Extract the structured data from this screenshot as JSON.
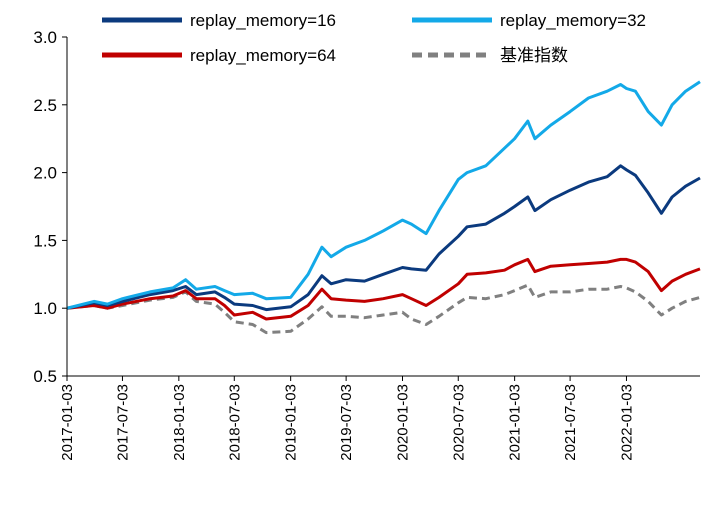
{
  "chart_data": {
    "type": "line",
    "title": "",
    "xlabel": "",
    "ylabel": "",
    "ylim": [
      0.5,
      3.0
    ],
    "yticks": [
      "0.5",
      "1.0",
      "1.5",
      "2.0",
      "2.5",
      "3.0"
    ],
    "x_ticks": [
      "2017-01-03",
      "2017-07-03",
      "2018-01-03",
      "2018-07-03",
      "2019-01-03",
      "2019-07-03",
      "2020-01-03",
      "2020-07-03",
      "2021-01-03",
      "2021-07-03",
      "2022-01-03"
    ],
    "x_range": [
      "2017-01-03",
      "2022-08-31"
    ],
    "legend_position": "top",
    "series": [
      {
        "name": "replay_memory=16",
        "color": "#0b3a7e",
        "style": "solid",
        "points": [
          [
            "2017-01-03",
            1.0
          ],
          [
            "2017-04-01",
            1.04
          ],
          [
            "2017-05-15",
            1.02
          ],
          [
            "2017-07-03",
            1.05
          ],
          [
            "2017-10-01",
            1.1
          ],
          [
            "2017-12-15",
            1.13
          ],
          [
            "2018-01-25",
            1.16
          ],
          [
            "2018-03-01",
            1.1
          ],
          [
            "2018-05-01",
            1.12
          ],
          [
            "2018-06-01",
            1.08
          ],
          [
            "2018-07-03",
            1.03
          ],
          [
            "2018-09-01",
            1.02
          ],
          [
            "2018-10-15",
            0.99
          ],
          [
            "2019-01-03",
            1.01
          ],
          [
            "2019-03-01",
            1.1
          ],
          [
            "2019-04-15",
            1.24
          ],
          [
            "2019-05-15",
            1.18
          ],
          [
            "2019-07-03",
            1.21
          ],
          [
            "2019-09-01",
            1.2
          ],
          [
            "2019-11-01",
            1.25
          ],
          [
            "2020-01-03",
            1.3
          ],
          [
            "2020-02-01",
            1.29
          ],
          [
            "2020-03-20",
            1.28
          ],
          [
            "2020-05-01",
            1.4
          ],
          [
            "2020-07-03",
            1.53
          ],
          [
            "2020-08-01",
            1.6
          ],
          [
            "2020-10-01",
            1.62
          ],
          [
            "2020-12-01",
            1.7
          ],
          [
            "2021-01-03",
            1.75
          ],
          [
            "2021-02-15",
            1.82
          ],
          [
            "2021-03-10",
            1.72
          ],
          [
            "2021-05-01",
            1.8
          ],
          [
            "2021-07-03",
            1.87
          ],
          [
            "2021-09-01",
            1.93
          ],
          [
            "2021-11-01",
            1.97
          ],
          [
            "2021-12-15",
            2.05
          ],
          [
            "2022-01-03",
            2.02
          ],
          [
            "2022-02-01",
            1.98
          ],
          [
            "2022-03-15",
            1.85
          ],
          [
            "2022-04-27",
            1.7
          ],
          [
            "2022-06-01",
            1.82
          ],
          [
            "2022-07-15",
            1.9
          ],
          [
            "2022-08-31",
            1.96
          ]
        ]
      },
      {
        "name": "replay_memory=32",
        "color": "#13a9e8",
        "style": "solid",
        "points": [
          [
            "2017-01-03",
            1.0
          ],
          [
            "2017-04-01",
            1.05
          ],
          [
            "2017-05-15",
            1.03
          ],
          [
            "2017-07-03",
            1.07
          ],
          [
            "2017-10-01",
            1.12
          ],
          [
            "2017-12-15",
            1.15
          ],
          [
            "2018-01-25",
            1.21
          ],
          [
            "2018-03-01",
            1.14
          ],
          [
            "2018-05-01",
            1.16
          ],
          [
            "2018-06-01",
            1.13
          ],
          [
            "2018-07-03",
            1.1
          ],
          [
            "2018-09-01",
            1.11
          ],
          [
            "2018-10-15",
            1.07
          ],
          [
            "2019-01-03",
            1.08
          ],
          [
            "2019-03-01",
            1.25
          ],
          [
            "2019-04-15",
            1.45
          ],
          [
            "2019-05-15",
            1.38
          ],
          [
            "2019-07-03",
            1.45
          ],
          [
            "2019-09-01",
            1.5
          ],
          [
            "2019-11-01",
            1.57
          ],
          [
            "2020-01-03",
            1.65
          ],
          [
            "2020-02-01",
            1.62
          ],
          [
            "2020-03-20",
            1.55
          ],
          [
            "2020-05-01",
            1.72
          ],
          [
            "2020-07-03",
            1.95
          ],
          [
            "2020-08-01",
            2.0
          ],
          [
            "2020-10-01",
            2.05
          ],
          [
            "2020-12-01",
            2.18
          ],
          [
            "2021-01-03",
            2.25
          ],
          [
            "2021-02-15",
            2.38
          ],
          [
            "2021-03-10",
            2.25
          ],
          [
            "2021-05-01",
            2.35
          ],
          [
            "2021-07-03",
            2.45
          ],
          [
            "2021-09-01",
            2.55
          ],
          [
            "2021-11-01",
            2.6
          ],
          [
            "2021-12-15",
            2.65
          ],
          [
            "2022-01-03",
            2.62
          ],
          [
            "2022-02-01",
            2.6
          ],
          [
            "2022-03-15",
            2.45
          ],
          [
            "2022-04-27",
            2.35
          ],
          [
            "2022-06-01",
            2.5
          ],
          [
            "2022-07-15",
            2.6
          ],
          [
            "2022-08-31",
            2.67
          ]
        ]
      },
      {
        "name": "replay_memory=64",
        "color": "#c00000",
        "style": "solid",
        "points": [
          [
            "2017-01-03",
            1.0
          ],
          [
            "2017-04-01",
            1.02
          ],
          [
            "2017-05-15",
            1.0
          ],
          [
            "2017-07-03",
            1.03
          ],
          [
            "2017-10-01",
            1.07
          ],
          [
            "2017-12-15",
            1.09
          ],
          [
            "2018-01-25",
            1.13
          ],
          [
            "2018-03-01",
            1.07
          ],
          [
            "2018-05-01",
            1.07
          ],
          [
            "2018-06-01",
            1.02
          ],
          [
            "2018-07-03",
            0.95
          ],
          [
            "2018-09-01",
            0.97
          ],
          [
            "2018-10-15",
            0.92
          ],
          [
            "2019-01-03",
            0.94
          ],
          [
            "2019-03-01",
            1.02
          ],
          [
            "2019-04-15",
            1.14
          ],
          [
            "2019-05-15",
            1.07
          ],
          [
            "2019-07-03",
            1.06
          ],
          [
            "2019-09-01",
            1.05
          ],
          [
            "2019-11-01",
            1.07
          ],
          [
            "2020-01-03",
            1.1
          ],
          [
            "2020-02-01",
            1.07
          ],
          [
            "2020-03-20",
            1.02
          ],
          [
            "2020-05-01",
            1.08
          ],
          [
            "2020-07-03",
            1.18
          ],
          [
            "2020-08-01",
            1.25
          ],
          [
            "2020-10-01",
            1.26
          ],
          [
            "2020-12-01",
            1.28
          ],
          [
            "2021-01-03",
            1.32
          ],
          [
            "2021-02-15",
            1.36
          ],
          [
            "2021-03-10",
            1.27
          ],
          [
            "2021-05-01",
            1.31
          ],
          [
            "2021-07-03",
            1.32
          ],
          [
            "2021-09-01",
            1.33
          ],
          [
            "2021-11-01",
            1.34
          ],
          [
            "2021-12-15",
            1.36
          ],
          [
            "2022-01-03",
            1.36
          ],
          [
            "2022-02-01",
            1.34
          ],
          [
            "2022-03-15",
            1.27
          ],
          [
            "2022-04-27",
            1.13
          ],
          [
            "2022-06-01",
            1.2
          ],
          [
            "2022-07-15",
            1.25
          ],
          [
            "2022-08-31",
            1.29
          ]
        ]
      },
      {
        "name": "基准指数",
        "color": "#808080",
        "style": "dashed",
        "points": [
          [
            "2017-01-03",
            1.0
          ],
          [
            "2017-04-01",
            1.02
          ],
          [
            "2017-05-15",
            1.0
          ],
          [
            "2017-07-03",
            1.02
          ],
          [
            "2017-10-01",
            1.06
          ],
          [
            "2017-12-15",
            1.08
          ],
          [
            "2018-01-25",
            1.12
          ],
          [
            "2018-03-01",
            1.05
          ],
          [
            "2018-05-01",
            1.03
          ],
          [
            "2018-06-01",
            0.97
          ],
          [
            "2018-07-03",
            0.9
          ],
          [
            "2018-09-01",
            0.88
          ],
          [
            "2018-10-15",
            0.82
          ],
          [
            "2019-01-03",
            0.83
          ],
          [
            "2019-03-01",
            0.92
          ],
          [
            "2019-04-15",
            1.01
          ],
          [
            "2019-05-15",
            0.94
          ],
          [
            "2019-07-03",
            0.94
          ],
          [
            "2019-09-01",
            0.93
          ],
          [
            "2019-11-01",
            0.95
          ],
          [
            "2020-01-03",
            0.97
          ],
          [
            "2020-02-01",
            0.92
          ],
          [
            "2020-03-20",
            0.88
          ],
          [
            "2020-05-01",
            0.94
          ],
          [
            "2020-07-03",
            1.04
          ],
          [
            "2020-08-01",
            1.08
          ],
          [
            "2020-10-01",
            1.07
          ],
          [
            "2020-12-01",
            1.1
          ],
          [
            "2021-01-03",
            1.13
          ],
          [
            "2021-02-15",
            1.17
          ],
          [
            "2021-03-10",
            1.08
          ],
          [
            "2021-05-01",
            1.12
          ],
          [
            "2021-07-03",
            1.12
          ],
          [
            "2021-09-01",
            1.14
          ],
          [
            "2021-11-01",
            1.14
          ],
          [
            "2021-12-15",
            1.16
          ],
          [
            "2022-01-03",
            1.15
          ],
          [
            "2022-02-01",
            1.12
          ],
          [
            "2022-03-15",
            1.05
          ],
          [
            "2022-04-27",
            0.95
          ],
          [
            "2022-06-01",
            1.0
          ],
          [
            "2022-07-15",
            1.05
          ],
          [
            "2022-08-31",
            1.08
          ]
        ]
      }
    ]
  }
}
